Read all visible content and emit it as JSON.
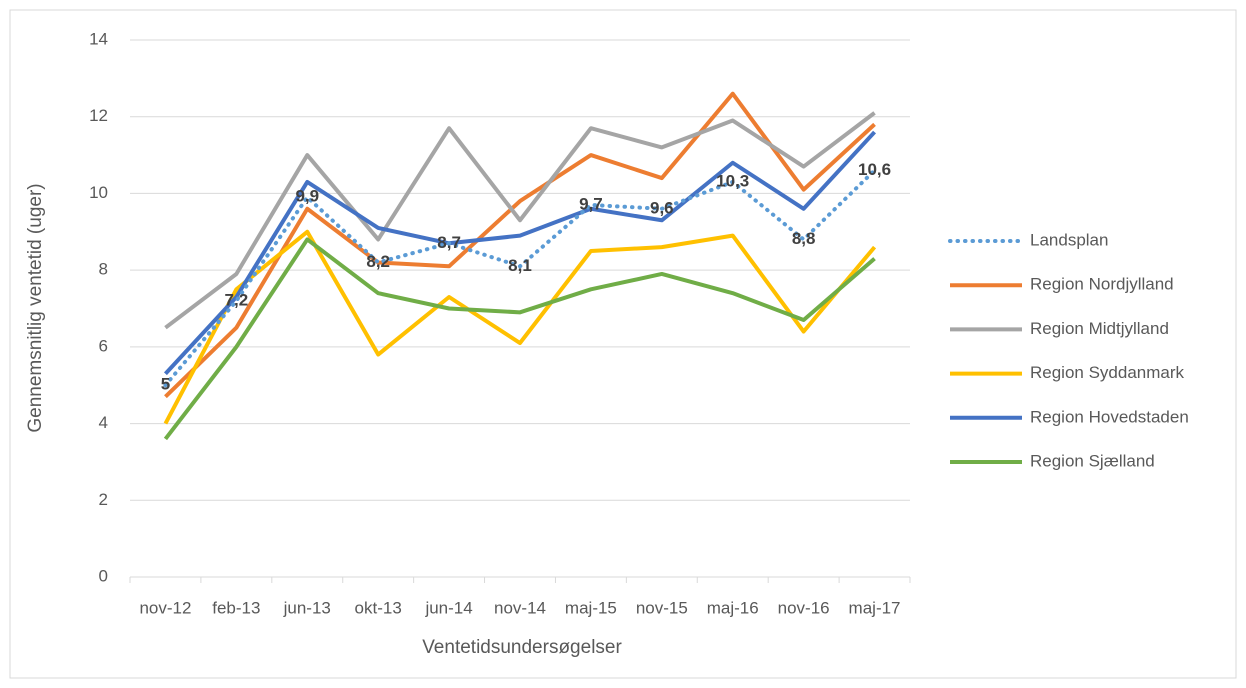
{
  "chart_data": {
    "type": "line",
    "x_label": "Ventetidsundersøgelser",
    "y_label": "Gennemsnitlig ventetid (uger)",
    "categories": [
      "nov-12",
      "feb-13",
      "jun-13",
      "okt-13",
      "jun-14",
      "nov-14",
      "maj-15",
      "nov-15",
      "maj-16",
      "nov-16",
      "maj-17"
    ],
    "ylim": [
      0,
      14
    ],
    "yticks": [
      0,
      2,
      4,
      6,
      8,
      10,
      12,
      14
    ],
    "grid": true,
    "legend": "right",
    "series": [
      {
        "name": "Landsplan",
        "color": "#5b9bd5",
        "dotted": true,
        "values": [
          5,
          7.2,
          9.9,
          8.2,
          8.7,
          8.1,
          9.7,
          9.6,
          10.3,
          8.8,
          10.6
        ],
        "value_labels": [
          "5",
          "7,2",
          "9,9",
          "8,2",
          "8,7",
          "8,1",
          "9,7",
          "9,6",
          "10,3",
          "8,8",
          "10,6"
        ]
      },
      {
        "name": "Region Nordjylland",
        "color": "#ed7d31",
        "values": [
          4.7,
          6.5,
          9.6,
          8.2,
          8.1,
          9.8,
          11.0,
          10.4,
          12.6,
          10.1,
          11.8
        ]
      },
      {
        "name": "Region Midtjylland",
        "color": "#a5a5a5",
        "values": [
          6.5,
          7.9,
          11.0,
          8.8,
          11.7,
          9.3,
          11.7,
          11.2,
          11.9,
          10.7,
          12.1
        ]
      },
      {
        "name": "Region Syddanmark",
        "color": "#ffc000",
        "values": [
          4.0,
          7.5,
          9.0,
          5.8,
          7.3,
          6.1,
          8.5,
          8.6,
          8.9,
          6.4,
          8.6
        ]
      },
      {
        "name": "Region Hovedstaden",
        "color": "#4472c4",
        "values": [
          5.3,
          7.3,
          10.3,
          9.1,
          8.7,
          8.9,
          9.6,
          9.3,
          10.8,
          9.6,
          11.6
        ]
      },
      {
        "name": "Region Sjælland",
        "color": "#70ad47",
        "values": [
          3.6,
          6.0,
          8.8,
          7.4,
          7.0,
          6.9,
          7.5,
          7.9,
          7.4,
          6.7,
          8.3
        ]
      }
    ]
  }
}
